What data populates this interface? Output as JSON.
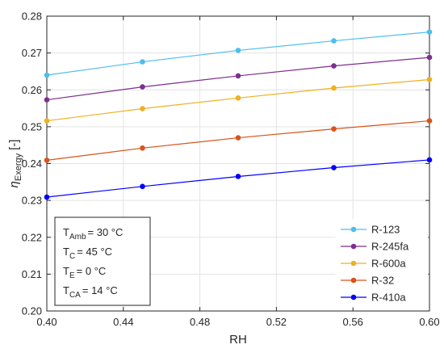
{
  "chart_data": {
    "type": "line",
    "title": "",
    "xlabel": "RH",
    "ylabel_main": "η",
    "ylabel_sub": "Exergy",
    "ylabel_unit": "[-]",
    "xlim": [
      0.4,
      0.6
    ],
    "ylim": [
      0.2,
      0.28
    ],
    "xticks": [
      0.4,
      0.44,
      0.48,
      0.52,
      0.56,
      0.6
    ],
    "xtick_labels": [
      "0.40",
      "0.44",
      "0.48",
      "0.52",
      "0.56",
      "0.60"
    ],
    "yticks": [
      0.2,
      0.21,
      0.22,
      0.23,
      0.24,
      0.25,
      0.26,
      0.27,
      0.28
    ],
    "ytick_labels": [
      "0.20",
      "0.21",
      "0.22",
      "0.23",
      "0.24",
      "0.25",
      "0.26",
      "0.27",
      "0.28"
    ],
    "grid": true,
    "legend_position": "bottom-right",
    "x": [
      0.4,
      0.45,
      0.5,
      0.55,
      0.6
    ],
    "series": [
      {
        "name": "R-123",
        "color": "#4DBEEE",
        "values": [
          0.264,
          0.2676,
          0.2707,
          0.2733,
          0.2757
        ]
      },
      {
        "name": "R-245fa",
        "color": "#7E2F8E",
        "values": [
          0.2573,
          0.2608,
          0.2638,
          0.2665,
          0.2688
        ]
      },
      {
        "name": "R-600a",
        "color": "#EDB120",
        "values": [
          0.2516,
          0.2549,
          0.2578,
          0.2605,
          0.2628
        ]
      },
      {
        "name": "R-32",
        "color": "#D95319",
        "values": [
          0.2409,
          0.2442,
          0.247,
          0.2494,
          0.2516
        ]
      },
      {
        "name": "R-410a",
        "color": "#0000FF",
        "values": [
          0.2309,
          0.2338,
          0.2365,
          0.2389,
          0.241
        ]
      }
    ],
    "conditions": [
      {
        "main": "T",
        "sub": "Amb",
        "rest": "= 30 °C"
      },
      {
        "main": "T",
        "sub": "C",
        "rest": "= 45 °C"
      },
      {
        "main": "T",
        "sub": "E",
        "rest": "= 0 °C"
      },
      {
        "main": "T",
        "sub": "CA",
        "rest": "= 14 °C"
      }
    ]
  }
}
